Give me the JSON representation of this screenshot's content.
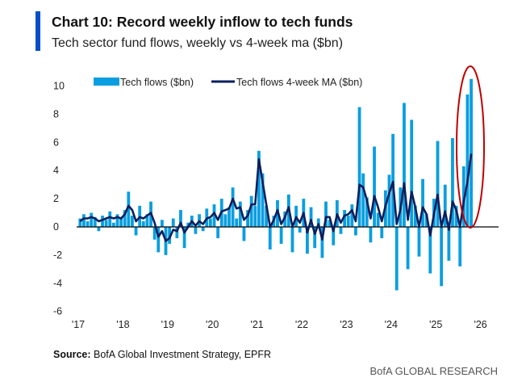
{
  "header": {
    "title": "Chart 10: Record weekly inflow to tech funds",
    "subtitle": "Tech sector fund flows, weekly vs 4-week ma ($bn)"
  },
  "footer": {
    "source_label": "Source:",
    "source_text": " BofA Global Investment Strategy, EPFR",
    "brand": "BofA GLOBAL RESEARCH"
  },
  "colors": {
    "bars": "#0a9ee0",
    "ma": "#0b1f5c",
    "accent": "#0050c8",
    "highlight": "#c00000"
  },
  "chart_data": {
    "type": "bar",
    "title": "Chart 10: Record weekly inflow to tech funds",
    "xlabel": "",
    "ylabel": "$bn",
    "ylim": [
      -6,
      10
    ],
    "yticks": [
      "10",
      "8",
      "6",
      "4",
      "2",
      "0",
      "-2",
      "-4",
      "-6"
    ],
    "ytick_values": [
      10,
      8,
      6,
      4,
      2,
      0,
      -2,
      -4,
      -6
    ],
    "xticks": [
      "'17",
      "'18",
      "'19",
      "'20",
      "'21",
      "'22",
      "'23",
      "'24",
      "'25",
      "'26"
    ],
    "xtick_values": [
      2017,
      2018,
      2019,
      2020,
      2021,
      2022,
      2023,
      2024,
      2025,
      2026
    ],
    "x_start": 2017,
    "periods_per_year": 12,
    "legend": {
      "placement": "top",
      "entries": [
        "Tech flows ($bn)",
        "Tech flows 4-week MA ($bn)"
      ]
    },
    "annotation": "red ellipse highlighting record inflows in late 2025",
    "series": [
      {
        "name": "Tech flows ($bn)",
        "kind": "bar",
        "values": [
          0.6,
          0.9,
          0.4,
          1.0,
          0.7,
          -0.3,
          0.8,
          0.5,
          1.1,
          0.3,
          0.9,
          0.6,
          1.2,
          2.5,
          0.8,
          -0.6,
          1.5,
          0.4,
          0.9,
          1.8,
          -0.9,
          -1.8,
          0.5,
          -2.0,
          -1.2,
          0.6,
          -0.8,
          1.2,
          -1.5,
          0.3,
          0.8,
          -0.5,
          0.9,
          -0.3,
          1.3,
          0.6,
          1.6,
          -0.8,
          2.0,
          0.9,
          1.4,
          2.8,
          0.6,
          1.8,
          -1.0,
          1.2,
          2.2,
          1.5,
          5.4,
          3.8,
          1.5,
          -1.6,
          0.8,
          1.9,
          -1.2,
          1.1,
          2.3,
          -1.8,
          1.5,
          -0.4,
          2.0,
          -1.9,
          1.4,
          -1.5,
          0.6,
          -2.2,
          1.8,
          0.5,
          -1.3,
          1.9,
          -0.5,
          1.2,
          0.8,
          1.6,
          -0.6,
          8.5,
          3.8,
          2.1,
          -1.1,
          5.7,
          1.0,
          -0.8,
          2.6,
          3.7,
          6.6,
          -4.5,
          2.8,
          8.8,
          -3.0,
          7.6,
          1.5,
          -2.1,
          3.4,
          0.9,
          -3.3,
          2.0,
          6.1,
          -4.2,
          3.0,
          -2.4,
          6.3,
          1.5,
          -2.8,
          4.3,
          9.4,
          10.5
        ]
      },
      {
        "name": "Tech flows 4-week MA ($bn)",
        "kind": "line",
        "values": [
          0.4,
          0.6,
          0.6,
          0.7,
          0.6,
          0.4,
          0.5,
          0.6,
          0.7,
          0.6,
          0.7,
          0.6,
          0.9,
          1.5,
          1.2,
          0.4,
          0.7,
          0.6,
          0.8,
          1.0,
          0.3,
          -0.7,
          -0.3,
          -1.0,
          -0.8,
          -0.2,
          -0.3,
          0.3,
          -0.4,
          0.0,
          0.4,
          0.1,
          0.4,
          0.2,
          0.6,
          0.7,
          1.0,
          0.5,
          1.1,
          1.2,
          1.3,
          2.0,
          1.3,
          1.4,
          0.5,
          0.8,
          1.6,
          1.6,
          4.8,
          3.2,
          1.6,
          0.0,
          0.5,
          1.2,
          0.2,
          0.7,
          1.4,
          0.0,
          0.7,
          0.3,
          1.0,
          -0.4,
          0.5,
          -0.5,
          0.2,
          -0.9,
          0.7,
          0.7,
          -0.3,
          0.9,
          0.3,
          0.8,
          0.9,
          1.2,
          0.4,
          3.0,
          2.8,
          1.9,
          0.6,
          2.2,
          1.4,
          0.4,
          1.5,
          2.4,
          3.2,
          0.2,
          1.2,
          3.1,
          0.5,
          2.5,
          1.4,
          0.0,
          1.4,
          0.9,
          -0.6,
          0.9,
          2.3,
          0.0,
          1.1,
          -0.2,
          1.8,
          1.2,
          0.0,
          1.8,
          3.2,
          5.2
        ]
      }
    ]
  }
}
